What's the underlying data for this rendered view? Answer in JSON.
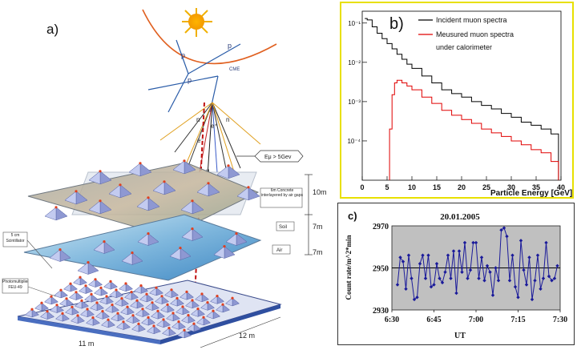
{
  "panel_a": {
    "label": "a)",
    "p_labels": [
      "p",
      "p",
      "p"
    ],
    "cme_label": "CME",
    "shower_labels": {
      "n_left": "n",
      "n_right": "n",
      "e_minus": "e⁻",
      "e_plus": "e⁺",
      "mu": "μ"
    },
    "energy_label": "Eμ > 5Gev",
    "concrete_label": "6m Concrete interlayered by air gaps",
    "dim_10m": "10m",
    "soil_label": "Soil",
    "dim_7m_a": "7m",
    "air_label": "Air",
    "dim_7m_b": "7m",
    "scintillator_label": "5 cm Scintillator",
    "pmt_label": "Photomultiplier FEU-49",
    "dim_12m": "12 m",
    "dim_11m": "11 m"
  },
  "panel_b": {
    "label": "b)",
    "border_color": "#e8e000",
    "xlabel": "Particle Energy [GeV]",
    "x_ticks": [
      "0",
      "5",
      "10",
      "15",
      "20",
      "25",
      "30",
      "35",
      "40"
    ],
    "y_ticks": [
      "10⁻¹",
      "10⁻²",
      "10⁻³",
      "10⁻⁴"
    ],
    "legend": [
      {
        "name": "Incident muon spectra",
        "color": "#000000"
      },
      {
        "name": "Meusured muon spectra",
        "color": "#e00000"
      },
      {
        "name": "under calorimeter",
        "color": ""
      }
    ]
  },
  "panel_c": {
    "label": "c)",
    "title": "20.01.2005",
    "ylabel": "Count rate/m^2*min",
    "xlabel": "UT",
    "y_ticks": [
      "2970",
      "2950",
      "2930"
    ],
    "x_ticks": [
      "6:30",
      "6:45",
      "7:00",
      "7:15",
      "7:30"
    ],
    "bg_color": "#c0c0c0",
    "line_color": "#1a1a9a"
  },
  "chart_data": [
    {
      "type": "line",
      "xlabel": "Particle Energy [GeV]",
      "ylabel": "",
      "xlim": [
        0,
        40
      ],
      "ylim": [
        1e-05,
        0.2
      ],
      "yscale": "log",
      "series": [
        {
          "name": "Incident muon spectra",
          "x": [
            0.5,
            1,
            2,
            3,
            4,
            5,
            6,
            7,
            8,
            9,
            10,
            12,
            14,
            16,
            18,
            20,
            22,
            24,
            26,
            28,
            30,
            32,
            34,
            36,
            38,
            39.5
          ],
          "y": [
            0.13,
            0.12,
            0.08,
            0.055,
            0.04,
            0.03,
            0.022,
            0.016,
            0.012,
            0.009,
            0.007,
            0.0045,
            0.003,
            0.002,
            0.0016,
            0.0013,
            0.001,
            0.0008,
            0.00065,
            0.0005,
            0.0004,
            0.0003,
            0.00025,
            0.0002,
            0.00015,
            0.00012
          ]
        },
        {
          "name": "Meusured muon spectra under calorimeter",
          "x": [
            5.5,
            6,
            6.5,
            7,
            8,
            9,
            10,
            12,
            14,
            16,
            18,
            20,
            22,
            24,
            26,
            28,
            30,
            32,
            34,
            36,
            38,
            39.5
          ],
          "y": [
            0.0002,
            0.0015,
            0.003,
            0.0035,
            0.003,
            0.0025,
            0.002,
            0.0013,
            0.0009,
            0.0006,
            0.00045,
            0.00035,
            0.00028,
            0.0002,
            0.00016,
            0.00013,
            0.0001,
            8e-05,
            6e-05,
            5e-05,
            3e-05,
            2e-05
          ]
        }
      ]
    },
    {
      "type": "line",
      "title": "20.01.2005",
      "xlabel": "UT",
      "ylabel": "Count rate/m^2*min",
      "xlim": [
        390,
        450
      ],
      "ylim": [
        2930,
        2970
      ],
      "x_unit": "minutes of UT (6:30 = 390)",
      "reference_line": 2950,
      "series": [
        {
          "name": "",
          "x": [
            392,
            393,
            394,
            395,
            396,
            397,
            398,
            399,
            400,
            401,
            402,
            403,
            404,
            405,
            406,
            407,
            408,
            409,
            410,
            411,
            412,
            413,
            414,
            415,
            416,
            417,
            418,
            419,
            420,
            421,
            422,
            423,
            424,
            425,
            426,
            427,
            428,
            429,
            430,
            431,
            432,
            433,
            434,
            435,
            436,
            437,
            438,
            439,
            440,
            441,
            442,
            443,
            444,
            445,
            446,
            447,
            448,
            449
          ],
          "y": [
            2942,
            2955,
            2953,
            2940,
            2956,
            2945,
            2935,
            2936,
            2952,
            2956,
            2945,
            2956,
            2941,
            2942,
            2952,
            2945,
            2943,
            2948,
            2956,
            2945,
            2958,
            2938,
            2958,
            2948,
            2962,
            2945,
            2949,
            2962,
            2962,
            2945,
            2955,
            2944,
            2951,
            2948,
            2937,
            2950,
            2944,
            2968,
            2969,
            2965,
            2944,
            2956,
            2941,
            2936,
            2963,
            2949,
            2942,
            2955,
            2935,
            2944,
            2956,
            2940,
            2945,
            2962,
            2946,
            2944,
            2945,
            2951
          ]
        }
      ]
    }
  ]
}
